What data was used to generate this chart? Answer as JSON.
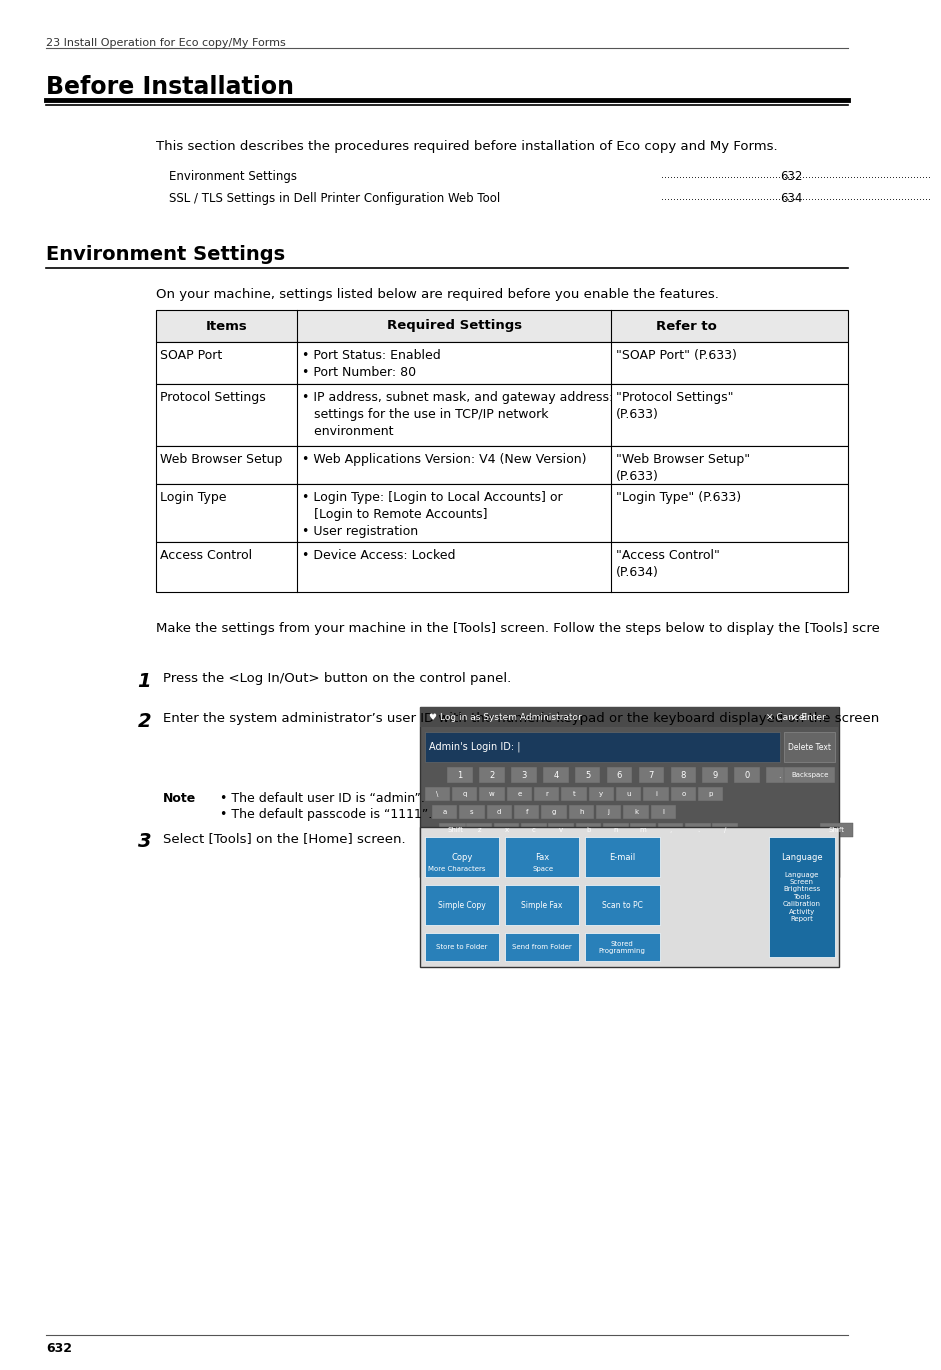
{
  "bg_color": "#ffffff",
  "page_num": "632",
  "header_text": "23 Install Operation for Eco copy/My Forms",
  "main_title": "Before Installation",
  "toc_items": [
    {
      "text": "Environment Settings",
      "dots": true,
      "page": "632"
    },
    {
      "text": "SSL / TLS Settings in Dell Printer Configuration Web Tool",
      "dots": true,
      "page": "634"
    }
  ],
  "section2_title": "Environment Settings",
  "intro_text": "This section describes the procedures required before installation of Eco copy and My Forms.",
  "env_intro": "On your machine, settings listed below are required before you enable the features.",
  "table_headers": [
    "Items",
    "Required Settings",
    "Refer to"
  ],
  "table_rows": [
    {
      "item": "SOAP Port",
      "required": "• Port Status: Enabled\n• Port Number: 80",
      "refer": "\"SOAP Port\" (P.633)"
    },
    {
      "item": "Protocol Settings",
      "required": "• IP address, subnet mask, and gateway address:\n   settings for the use in TCP/IP network\n   environment",
      "refer": "\"Protocol Settings\"\n(P.633)"
    },
    {
      "item": "Web Browser Setup",
      "required": "• Web Applications Version: V4 (New Version)",
      "refer": "\"Web Browser Setup\"\n(P.633)"
    },
    {
      "item": "Login Type",
      "required": "• Login Type: [Login to Local Accounts] or\n   [Login to Remote Accounts]\n• User registration",
      "refer": "\"Login Type\" (P.633)"
    },
    {
      "item": "Access Control",
      "required": "• Device Access: Locked",
      "refer": "\"Access Control\"\n(P.634)"
    }
  ],
  "body_text": "Make the settings from your machine in the [Tools] screen. Follow the steps below to display the [Tools] screen.",
  "steps": [
    {
      "num": "1",
      "text": "Press the <Log In/Out> button on the control panel.",
      "has_image": false,
      "note": null
    },
    {
      "num": "2",
      "text": "Enter the system administrator’s user ID with the numeric keypad or the keyboard displayed on the screen, and select [Enter].",
      "has_image": true,
      "note": {
        "label": "Note",
        "items": [
          "The default user ID is “admin”.",
          "The default passcode is “1111”."
        ]
      }
    },
    {
      "num": "3",
      "text": "Select [Tools] on the [Home] screen.",
      "has_image": true,
      "note": null
    }
  ]
}
